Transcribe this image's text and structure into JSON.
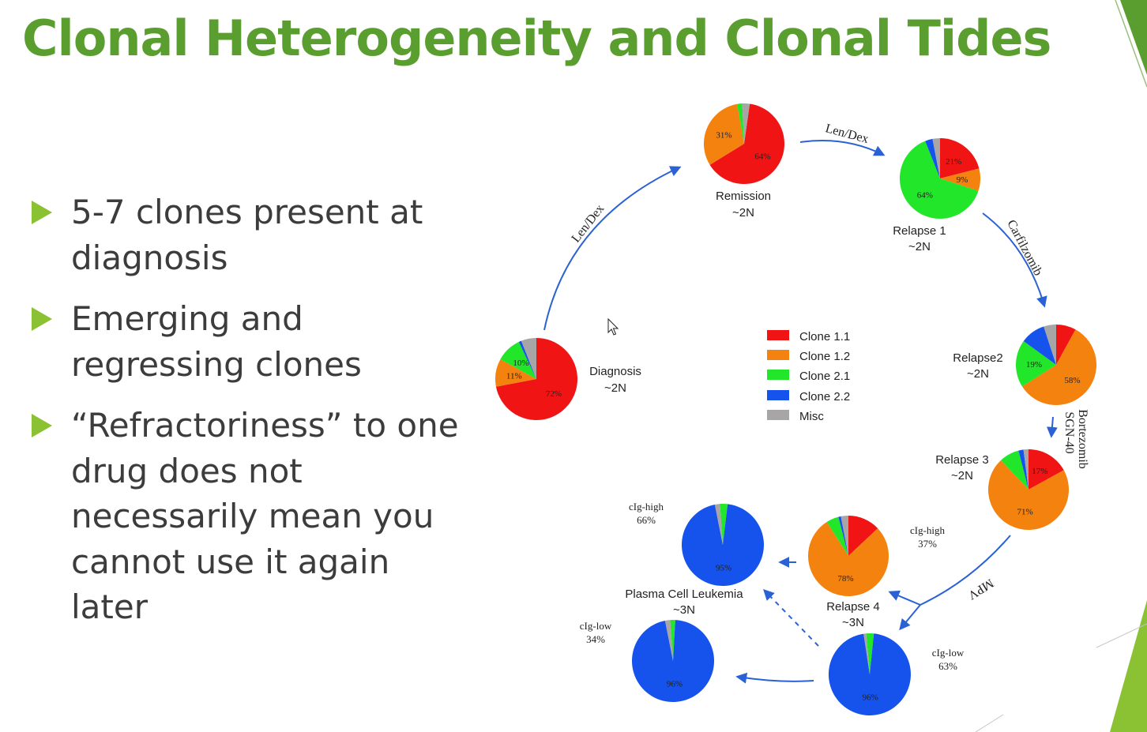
{
  "title": "Clonal Heterogeneity and Clonal Tides",
  "bullets": [
    "5-7 clones present at diagnosis",
    "Emerging and regressing clones",
    "“Refractoriness” to one drug does not necessarily mean you cannot use it again later"
  ],
  "legend": [
    {
      "name": "Clone 1.1",
      "color": "#f01414"
    },
    {
      "name": "Clone 1.2",
      "color": "#f4820f"
    },
    {
      "name": "Clone 2.1",
      "color": "#22e629"
    },
    {
      "name": "Clone 2.2",
      "color": "#1553ec"
    },
    {
      "name": "Misc",
      "color": "#a8a5a6"
    }
  ],
  "samples": [
    {
      "id": "diagnosis",
      "label": "Diagnosis",
      "ploidy": "~2N",
      "slices": [
        72,
        11,
        10,
        1,
        6
      ],
      "pct_labels": [
        "72%",
        "11%",
        "10%"
      ]
    },
    {
      "id": "remission",
      "label": "Remission",
      "ploidy": "~2N",
      "slices": [
        64,
        31,
        2,
        0,
        3
      ],
      "pct_labels": [
        "64%",
        "31%"
      ]
    },
    {
      "id": "relapse1",
      "label": "Relapse 1",
      "ploidy": "~2N",
      "slices": [
        21,
        9,
        64,
        3,
        3
      ],
      "pct_labels": [
        "21%",
        "9%",
        "64%"
      ]
    },
    {
      "id": "relapse2",
      "label": "Relapse2",
      "ploidy": "~2N",
      "slices": [
        8,
        58,
        19,
        10,
        5
      ],
      "pct_labels": [
        "58%",
        "19%"
      ]
    },
    {
      "id": "relapse3",
      "label": "Relapse 3",
      "ploidy": "~2N",
      "slices": [
        17,
        71,
        8,
        2,
        2
      ],
      "pct_labels": [
        "17%",
        "71%"
      ]
    },
    {
      "id": "relapse4",
      "label": "Relapse 4",
      "ploidy": "~3N",
      "slices": [
        13,
        78,
        5,
        1,
        3
      ],
      "pct_labels": [
        "78%"
      ]
    },
    {
      "id": "pcl_high",
      "label": "Plasma Cell Leukemia",
      "ploidy": "~3N",
      "slices": [
        0,
        0,
        3,
        95,
        2
      ],
      "pct_labels": [
        "95%"
      ]
    },
    {
      "id": "pcl_low",
      "slices": [
        0,
        0,
        2,
        96,
        2
      ],
      "pct_labels": [
        "96%"
      ]
    },
    {
      "id": "r4_low",
      "slices": [
        0,
        0,
        3,
        96,
        1
      ],
      "pct_labels": [
        "96%"
      ]
    }
  ],
  "fractions": {
    "pcl_high": {
      "label": "cIg-high",
      "value": "66%"
    },
    "pcl_low": {
      "label": "cIg-low",
      "value": "34%"
    },
    "r4_high": {
      "label": "cIg-high",
      "value": "37%"
    },
    "r4_low": {
      "label": "cIg-low",
      "value": "63%"
    }
  },
  "treatments": {
    "diag_to_remission": "Len/Dex",
    "remission_to_relapse1": "Len/Dex",
    "relapse1_to_relapse2": "Carfilzomib",
    "relapse2_to_relapse3_line1": "Bortezomib",
    "relapse2_to_relapse3_line2": "SGN-40",
    "relapse3_to_relapse4": "MPV"
  }
}
